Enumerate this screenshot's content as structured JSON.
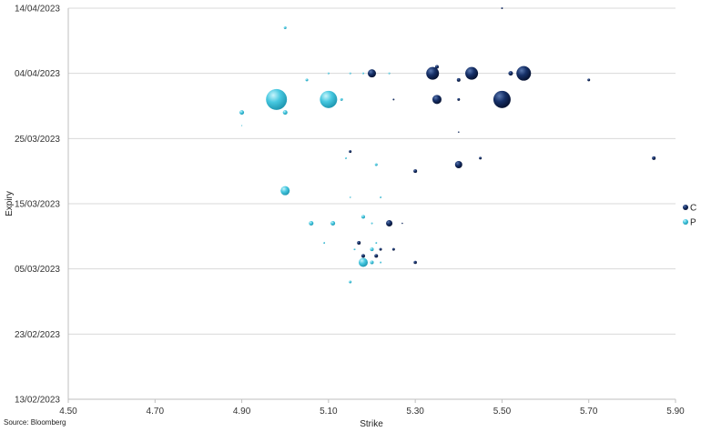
{
  "chart_data": {
    "type": "bubble",
    "title": "",
    "xlabel": "Strike",
    "ylabel": "Expiry",
    "source": "Source: Bloomberg",
    "x_ticks": [
      "4.50",
      "4.70",
      "4.90",
      "5.10",
      "5.30",
      "5.50",
      "5.70",
      "5.90"
    ],
    "xlim": [
      4.5,
      5.9
    ],
    "y_ticks": [
      "13/02/2023",
      "23/02/2023",
      "05/03/2023",
      "15/03/2023",
      "25/03/2023",
      "04/04/2023",
      "14/04/2023"
    ],
    "ylim": [
      "2023-02-13",
      "2023-04-14"
    ],
    "gridlines": "horizontal",
    "legend_position": "right",
    "colors": {
      "C": "#0b2150",
      "P": "#3ec3dc"
    },
    "series": [
      {
        "name": "C",
        "points": [
          {
            "x": 5.5,
            "y": "2023-04-14",
            "size": 1.0
          },
          {
            "x": 5.35,
            "y": "2023-04-05",
            "size": 2.0
          },
          {
            "x": 5.2,
            "y": "2023-04-04",
            "size": 4.5
          },
          {
            "x": 5.34,
            "y": "2023-04-04",
            "size": 7.0
          },
          {
            "x": 5.43,
            "y": "2023-04-04",
            "size": 7.0
          },
          {
            "x": 5.52,
            "y": "2023-04-04",
            "size": 2.5
          },
          {
            "x": 5.55,
            "y": "2023-04-04",
            "size": 8.0
          },
          {
            "x": 5.4,
            "y": "2023-04-03",
            "size": 2.0
          },
          {
            "x": 5.7,
            "y": "2023-04-03",
            "size": 1.5
          },
          {
            "x": 5.25,
            "y": "2023-03-31",
            "size": 1.0
          },
          {
            "x": 5.35,
            "y": "2023-03-31",
            "size": 5.0
          },
          {
            "x": 5.4,
            "y": "2023-03-31",
            "size": 1.5
          },
          {
            "x": 5.5,
            "y": "2023-03-31",
            "size": 9.5
          },
          {
            "x": 5.4,
            "y": "2023-03-26",
            "size": 0.8
          },
          {
            "x": 5.15,
            "y": "2023-03-23",
            "size": 1.5
          },
          {
            "x": 5.45,
            "y": "2023-03-22",
            "size": 1.5
          },
          {
            "x": 5.85,
            "y": "2023-03-22",
            "size": 2.0
          },
          {
            "x": 5.3,
            "y": "2023-03-20",
            "size": 2.0
          },
          {
            "x": 5.4,
            "y": "2023-03-21",
            "size": 4.0
          },
          {
            "x": 5.24,
            "y": "2023-03-12",
            "size": 3.5
          },
          {
            "x": 5.27,
            "y": "2023-03-12",
            "size": 0.8
          },
          {
            "x": 5.17,
            "y": "2023-03-09",
            "size": 2.0
          },
          {
            "x": 5.22,
            "y": "2023-03-08",
            "size": 1.5
          },
          {
            "x": 5.25,
            "y": "2023-03-08",
            "size": 1.5
          },
          {
            "x": 5.18,
            "y": "2023-03-07",
            "size": 2.0
          },
          {
            "x": 5.21,
            "y": "2023-03-07",
            "size": 2.0
          },
          {
            "x": 5.3,
            "y": "2023-03-06",
            "size": 1.8
          }
        ]
      },
      {
        "name": "P",
        "points": [
          {
            "x": 5.0,
            "y": "2023-04-11",
            "size": 1.5
          },
          {
            "x": 5.1,
            "y": "2023-04-04",
            "size": 1.0
          },
          {
            "x": 5.15,
            "y": "2023-04-04",
            "size": 1.0
          },
          {
            "x": 5.18,
            "y": "2023-04-04",
            "size": 1.0
          },
          {
            "x": 5.24,
            "y": "2023-04-04",
            "size": 1.0
          },
          {
            "x": 5.05,
            "y": "2023-04-03",
            "size": 1.5
          },
          {
            "x": 4.98,
            "y": "2023-03-31",
            "size": 11.5
          },
          {
            "x": 5.1,
            "y": "2023-03-31",
            "size": 9.5
          },
          {
            "x": 5.13,
            "y": "2023-03-31",
            "size": 1.5
          },
          {
            "x": 4.9,
            "y": "2023-03-29",
            "size": 2.5
          },
          {
            "x": 5.0,
            "y": "2023-03-29",
            "size": 2.5
          },
          {
            "x": 4.9,
            "y": "2023-03-27",
            "size": 0.6
          },
          {
            "x": 5.14,
            "y": "2023-03-22",
            "size": 1.0
          },
          {
            "x": 5.21,
            "y": "2023-03-21",
            "size": 1.5
          },
          {
            "x": 5.0,
            "y": "2023-03-17",
            "size": 5.0
          },
          {
            "x": 5.15,
            "y": "2023-03-16",
            "size": 0.8
          },
          {
            "x": 5.22,
            "y": "2023-03-16",
            "size": 1.0
          },
          {
            "x": 5.18,
            "y": "2023-03-13",
            "size": 2.0
          },
          {
            "x": 5.06,
            "y": "2023-03-12",
            "size": 2.5
          },
          {
            "x": 5.11,
            "y": "2023-03-12",
            "size": 2.5
          },
          {
            "x": 5.2,
            "y": "2023-03-12",
            "size": 1.0
          },
          {
            "x": 5.09,
            "y": "2023-03-09",
            "size": 1.0
          },
          {
            "x": 5.21,
            "y": "2023-03-09",
            "size": 1.0
          },
          {
            "x": 5.16,
            "y": "2023-03-08",
            "size": 1.0
          },
          {
            "x": 5.2,
            "y": "2023-03-08",
            "size": 2.0
          },
          {
            "x": 5.18,
            "y": "2023-03-06",
            "size": 5.0
          },
          {
            "x": 5.2,
            "y": "2023-03-06",
            "size": 2.0
          },
          {
            "x": 5.22,
            "y": "2023-03-06",
            "size": 1.0
          },
          {
            "x": 5.15,
            "y": "2023-03-03",
            "size": 1.5
          }
        ]
      }
    ]
  }
}
